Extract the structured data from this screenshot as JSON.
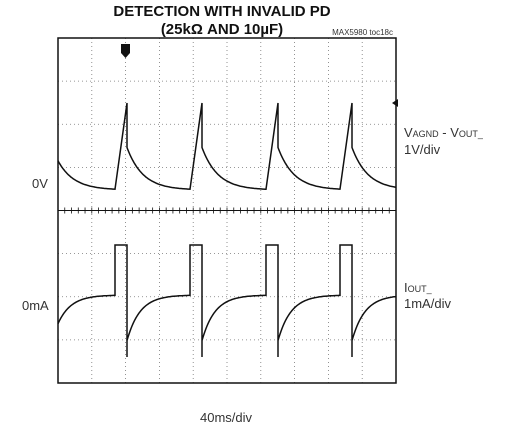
{
  "title": [
    "DETECTION WITH INVALID PD",
    "(25kΩ AND 10µF)"
  ],
  "figure_id": "MAX5980 toc18c",
  "channels": [
    {
      "level": "0V",
      "label": {
        "main": "V",
        "sub": "AGND",
        "main2": " - V",
        "sub2": "OUT_"
      },
      "scale": "1V/div"
    },
    {
      "level": "0mA",
      "label": {
        "main": "I",
        "sub": "OUT_"
      },
      "scale": "1mA/div"
    }
  ],
  "timebase": "40ms/div"
}
